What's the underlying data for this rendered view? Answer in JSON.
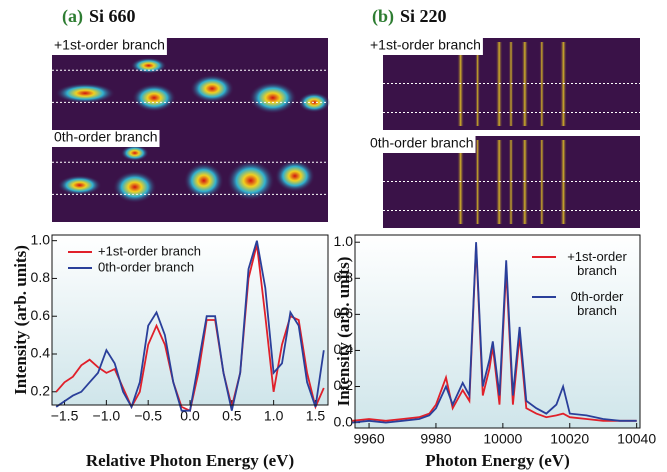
{
  "chart_data": [
    {
      "type": "line",
      "panel_label": "(a)",
      "title": "Si 660",
      "image_labels": [
        "+1st-order branch",
        "0th-order branch"
      ],
      "xlabel": "Relative Photon Energy (eV)",
      "ylabel": "Intensity (arb. units)",
      "x": [
        -1.6,
        -1.5,
        -1.4,
        -1.3,
        -1.2,
        -1.1,
        -1.0,
        -0.9,
        -0.8,
        -0.7,
        -0.6,
        -0.5,
        -0.4,
        -0.3,
        -0.2,
        -0.1,
        0.0,
        0.1,
        0.2,
        0.3,
        0.4,
        0.5,
        0.6,
        0.7,
        0.8,
        0.9,
        1.0,
        1.1,
        1.2,
        1.3,
        1.4,
        1.5,
        1.6
      ],
      "series": [
        {
          "name": "+1st-order branch",
          "color": "#e0202a",
          "values": [
            0.2,
            0.25,
            0.28,
            0.34,
            0.37,
            0.33,
            0.3,
            0.32,
            0.22,
            0.12,
            0.2,
            0.45,
            0.55,
            0.45,
            0.25,
            0.12,
            0.1,
            0.3,
            0.58,
            0.58,
            0.3,
            0.12,
            0.3,
            0.8,
            0.98,
            0.6,
            0.2,
            0.45,
            0.6,
            0.58,
            0.3,
            0.12,
            0.22
          ]
        },
        {
          "name": "0th-order branch",
          "color": "#2a3f9a",
          "values": [
            0.12,
            0.15,
            0.18,
            0.2,
            0.25,
            0.3,
            0.42,
            0.35,
            0.2,
            0.12,
            0.25,
            0.55,
            0.62,
            0.5,
            0.25,
            0.1,
            0.1,
            0.35,
            0.6,
            0.6,
            0.3,
            0.1,
            0.3,
            0.85,
            1.0,
            0.75,
            0.3,
            0.35,
            0.62,
            0.55,
            0.25,
            0.12,
            0.42
          ]
        }
      ],
      "xlim": [
        -1.65,
        1.65
      ],
      "ylim": [
        0.13,
        1.03
      ],
      "xticks": [
        {
          "value": -1.5,
          "label": "−1.5"
        },
        {
          "value": -1.0,
          "label": "−1.0"
        },
        {
          "value": -0.5,
          "label": "−0.5"
        },
        {
          "value": 0,
          "label": "0.0"
        },
        0.5,
        {
          "value": 1,
          "label": "1.0"
        },
        1.5
      ],
      "yticks": [
        0.2,
        0.4,
        0.6,
        0.8,
        {
          "value": 1,
          "label": "1.0"
        }
      ],
      "legend": "upper left"
    },
    {
      "type": "line",
      "panel_label": "(b)",
      "title": "Si 220",
      "image_labels": [
        "+1st-order branch",
        "0th-order branch"
      ],
      "xlabel": "Photon Energy (eV)",
      "ylabel": "Intensity (arb. units)",
      "x": [
        9955,
        9960,
        9965,
        9970,
        9975,
        9978,
        9980,
        9983,
        9985,
        9988,
        9990,
        9992,
        9994,
        9996,
        9997,
        9999,
        10001,
        10003,
        10005,
        10007,
        10010,
        10013,
        10016,
        10018,
        10020,
        10025,
        10030,
        10035,
        10040
      ],
      "series": [
        {
          "name": "+1st-order branch",
          "color": "#e0202a",
          "values": [
            0.01,
            0.02,
            0.01,
            0.02,
            0.03,
            0.05,
            0.1,
            0.25,
            0.08,
            0.18,
            0.12,
            0.98,
            0.15,
            0.3,
            0.42,
            0.1,
            0.85,
            0.1,
            0.48,
            0.08,
            0.05,
            0.03,
            0.04,
            0.05,
            0.03,
            0.02,
            0.01,
            0.01,
            0.01
          ]
        },
        {
          "name": "0th-order branch",
          "color": "#2a3f9a",
          "values": [
            0.0,
            0.01,
            0.0,
            0.01,
            0.02,
            0.04,
            0.08,
            0.2,
            0.1,
            0.22,
            0.15,
            1.0,
            0.2,
            0.35,
            0.45,
            0.15,
            0.9,
            0.15,
            0.53,
            0.12,
            0.08,
            0.05,
            0.1,
            0.2,
            0.05,
            0.04,
            0.02,
            0.01,
            0.01
          ]
        }
      ],
      "xlim": [
        9955.8,
        10041
      ],
      "ylim": [
        -0.03,
        1.04
      ],
      "xticks": [
        9960,
        9980,
        10000,
        10020,
        10040
      ],
      "yticks": [
        {
          "value": 0,
          "label": "0.0"
        },
        0.2,
        0.4,
        0.6,
        0.8,
        {
          "value": 1,
          "label": "1.0"
        }
      ],
      "legend": "upper right"
    }
  ]
}
